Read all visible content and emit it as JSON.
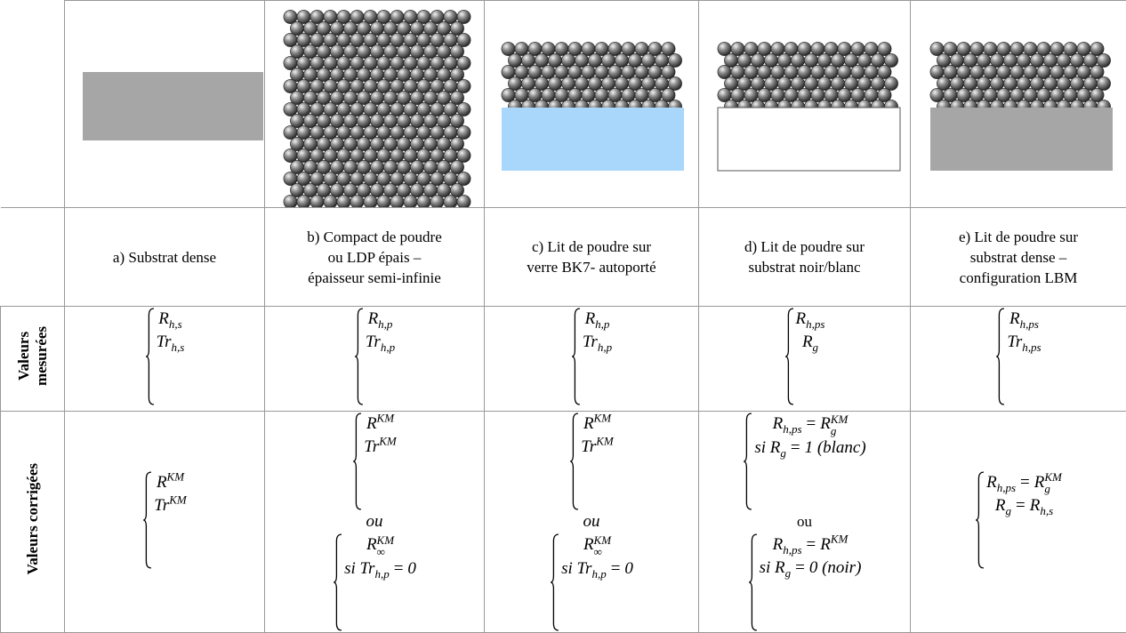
{
  "table": {
    "columns": [
      {
        "label": [
          "a) Substrat dense"
        ]
      },
      {
        "label": [
          "b) Compact de poudre",
          "ou LDP épais –",
          "épaisseur semi-infinie"
        ]
      },
      {
        "label": [
          "c) Lit de poudre sur",
          "verre BK7- autoporté"
        ]
      },
      {
        "label": [
          "d) Lit de poudre sur",
          "substrat noir/blanc"
        ]
      },
      {
        "label": [
          "e) Lit de poudre sur",
          "substrat dense –",
          "configuration LBM"
        ]
      }
    ],
    "rows": [
      {
        "header": [
          "Valeurs",
          "mesurées"
        ],
        "cells": [
          [
            {
              "brace": [
                [
                  {
                    "t": "R",
                    "sub": "h,s"
                  }
                ],
                [
                  {
                    "t": "Tr",
                    "sub": "h,s"
                  }
                ]
              ]
            }
          ],
          [
            {
              "brace": [
                [
                  {
                    "t": "R",
                    "sub": "h,p"
                  }
                ],
                [
                  {
                    "t": "Tr",
                    "sub": "h,p"
                  }
                ]
              ]
            }
          ],
          [
            {
              "brace": [
                [
                  {
                    "t": "R",
                    "sub": "h,p"
                  }
                ],
                [
                  {
                    "t": "Tr",
                    "sub": "h,p"
                  }
                ]
              ]
            }
          ],
          [
            {
              "brace": [
                [
                  {
                    "t": "R",
                    "sub": "h,ps"
                  }
                ],
                [
                  {
                    "t": "R",
                    "sub": "g"
                  }
                ]
              ]
            }
          ],
          [
            {
              "brace": [
                [
                  {
                    "t": "R",
                    "sub": "h,ps"
                  }
                ],
                [
                  {
                    "t": "Tr",
                    "sub": "h,ps"
                  }
                ]
              ]
            }
          ]
        ]
      },
      {
        "header": [
          "Valeurs corrigées"
        ],
        "cells": [
          [
            {
              "brace": [
                [
                  {
                    "t": "R",
                    "sup": "KM"
                  }
                ],
                [
                  {
                    "t": "Tr",
                    "sup": "KM"
                  }
                ]
              ]
            }
          ],
          [
            {
              "brace": [
                [
                  {
                    "t": "R",
                    "sup": "KM"
                  }
                ],
                [
                  {
                    "t": "Tr",
                    "sup": "KM"
                  }
                ]
              ]
            },
            {
              "text": "ou",
              "italic": true
            },
            {
              "brace": [
                [
                  {
                    "t": "R",
                    "sub": "∞",
                    "sup": "KM"
                  }
                ],
                [
                  {
                    "t": "si Tr",
                    "sub": "h,p"
                  },
                  {
                    "t": "="
                  },
                  {
                    "t": "0"
                  }
                ]
              ]
            }
          ],
          [
            {
              "brace": [
                [
                  {
                    "t": "R",
                    "sup": "KM"
                  }
                ],
                [
                  {
                    "t": "Tr",
                    "sup": "KM"
                  }
                ]
              ]
            },
            {
              "text": "ou",
              "italic": true
            },
            {
              "brace": [
                [
                  {
                    "t": "R",
                    "sub": "∞",
                    "sup": "KM"
                  }
                ],
                [
                  {
                    "t": "si Tr",
                    "sub": "h,p"
                  },
                  {
                    "t": "="
                  },
                  {
                    "t": "0"
                  }
                ]
              ]
            }
          ],
          [
            {
              "brace": [
                [
                  {
                    "t": "R",
                    "sub": "h,ps"
                  },
                  {
                    "t": "="
                  },
                  {
                    "t": "R",
                    "sub": "g",
                    "sup": "KM"
                  }
                ],
                [
                  {
                    "t": "si R",
                    "sub": "g"
                  },
                  {
                    "t": "="
                  },
                  {
                    "t": "1 (blanc)"
                  }
                ]
              ]
            },
            {
              "text": "ou",
              "italic": false
            },
            {
              "brace": [
                [
                  {
                    "t": "R",
                    "sub": "h,ps"
                  },
                  {
                    "t": "="
                  },
                  {
                    "t": "R",
                    "sup": "KM"
                  }
                ],
                [
                  {
                    "t": "si R",
                    "sub": "g"
                  },
                  {
                    "t": "="
                  },
                  {
                    "t": "0 (noir)"
                  }
                ]
              ]
            }
          ],
          [
            {
              "brace": [
                [
                  {
                    "t": "R",
                    "sub": "h,ps"
                  },
                  {
                    "t": "="
                  },
                  {
                    "t": "R",
                    "sub": "g",
                    "sup": "KM"
                  }
                ],
                [
                  {
                    "t": "R",
                    "sub": "g"
                  },
                  {
                    "t": "="
                  },
                  {
                    "t": "R",
                    "sub": "h,s"
                  }
                ]
              ]
            }
          ]
        ]
      }
    ]
  }
}
